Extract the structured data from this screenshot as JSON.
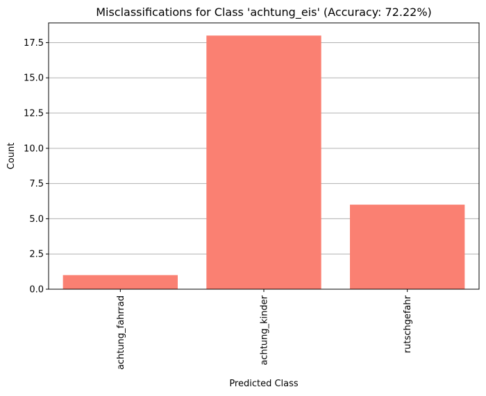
{
  "chart_data": {
    "type": "bar",
    "title": "Misclassifications for Class 'achtung_eis' (Accuracy: 72.22%)",
    "xlabel": "Predicted Class",
    "ylabel": "Count",
    "categories": [
      "achtung_fahrrad",
      "achtung_kinder",
      "rutschgefahr"
    ],
    "values": [
      1,
      18,
      6
    ],
    "ylim": [
      0,
      18.9
    ],
    "yticks": [
      0.0,
      2.5,
      5.0,
      7.5,
      10.0,
      12.5,
      15.0,
      17.5
    ],
    "ytick_labels": [
      "0.0",
      "2.5",
      "5.0",
      "7.5",
      "10.0",
      "12.5",
      "15.0",
      "17.5"
    ],
    "grid": "horizontal",
    "bar_color": "#fa8072",
    "grid_color": "#b0b0b0"
  }
}
